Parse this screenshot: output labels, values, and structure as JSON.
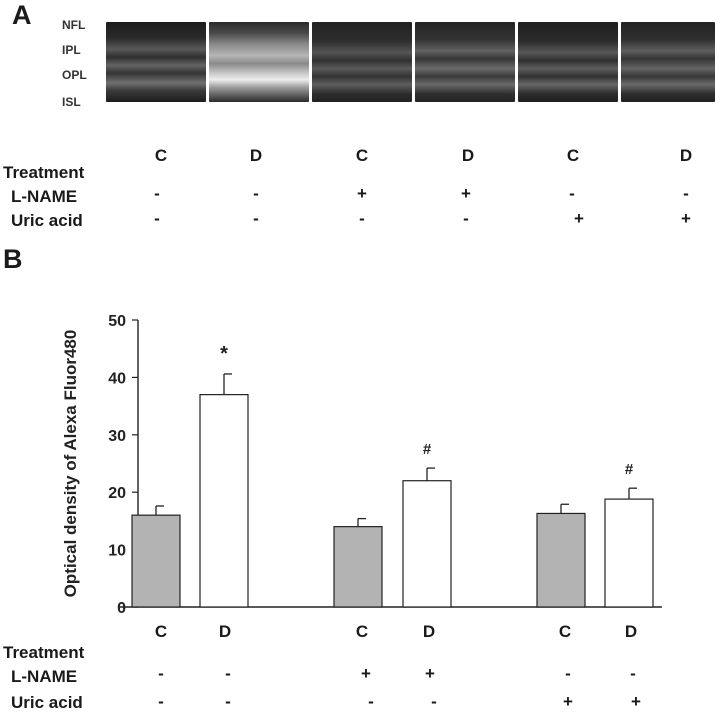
{
  "panel_a": {
    "letter": "A",
    "layer_labels": [
      "NFL",
      "IPL",
      "OPL",
      "ISL"
    ],
    "groups": [
      "C",
      "D",
      "C",
      "D",
      "C",
      "D"
    ],
    "treatment_label": "Treatment",
    "lname_label": "L-NAME",
    "lname": [
      "-",
      "-",
      "+",
      "+",
      "-",
      "-"
    ],
    "uric_label": "Uric acid",
    "uric": [
      "-",
      "-",
      "-",
      "-",
      "+",
      "+"
    ]
  },
  "panel_b": {
    "letter": "B",
    "treatment_label": "Treatment",
    "lname_label": "L-NAME",
    "lname": [
      "-",
      "-",
      "+",
      "+",
      "-",
      "-"
    ],
    "uric_label": "Uric acid",
    "uric": [
      "-",
      "-",
      "-",
      "-",
      "+",
      "+"
    ]
  },
  "chart_data": {
    "type": "bar",
    "categories": [
      "C",
      "D",
      "C",
      "D",
      "C",
      "D"
    ],
    "values": [
      16,
      37,
      14,
      22,
      16.3,
      18.8
    ],
    "errors": [
      1.6,
      3.6,
      1.4,
      2.2,
      1.6,
      1.9
    ],
    "annotations": [
      "",
      "*",
      "",
      "#",
      "",
      "#"
    ],
    "fills": [
      "#b3b3b3",
      "#ffffff",
      "#b3b3b3",
      "#ffffff",
      "#b3b3b3",
      "#ffffff"
    ],
    "ylabel": "Optical density of Alexa Fluor480",
    "ylim": [
      0,
      50
    ],
    "yticks": [
      0,
      10,
      20,
      30,
      40,
      50
    ],
    "grid": false
  }
}
